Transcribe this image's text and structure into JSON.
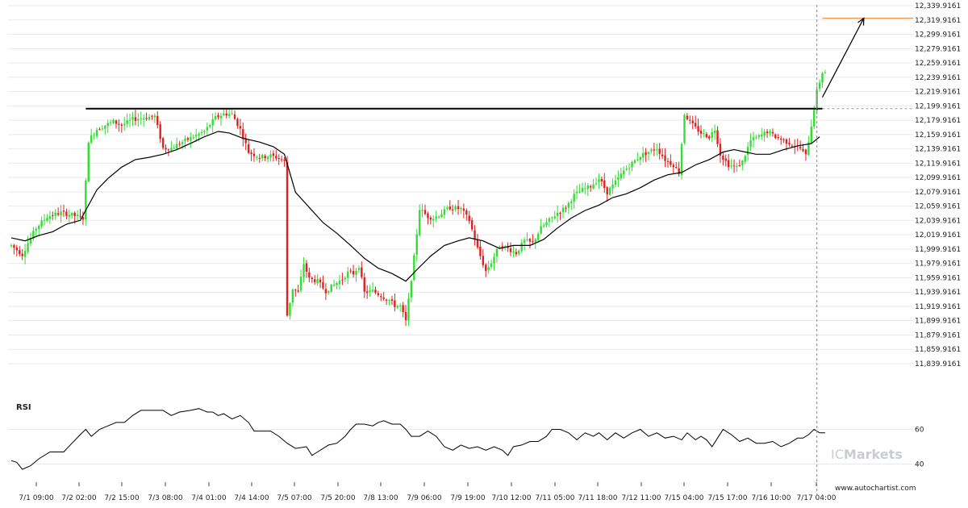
{
  "chart_data": [
    {
      "type": "candlestick",
      "ylim": [
        11825,
        12345
      ],
      "y_ticks": [
        "12,339.9161",
        "12,319.9161",
        "12,299.9161",
        "12,279.9161",
        "12,259.9161",
        "12,239.9161",
        "12,219.9161",
        "12,199.9161",
        "12,179.9161",
        "12,159.9161",
        "12,139.9161",
        "12,119.9161",
        "12,099.9161",
        "12,079.9161",
        "12,059.9161",
        "12,039.9161",
        "12,019.9161",
        "11,999.9161",
        "11,979.9161",
        "11,959.9161",
        "11,939.9161",
        "11,919.9161",
        "11,899.9161",
        "11,879.9161",
        "11,859.9161",
        "11,839.9161"
      ],
      "x_ticks": [
        "7/1 09:00",
        "7/2 02:00",
        "7/2 15:00",
        "7/3 08:00",
        "7/4 01:00",
        "7/4 14:00",
        "7/5 07:00",
        "7/5 20:00",
        "7/8 13:00",
        "7/9 06:00",
        "7/9 19:00",
        "7/10 12:00",
        "7/11 05:00",
        "7/11 18:00",
        "7/12 11:00",
        "7/15 04:00",
        "7/15 17:00",
        "7/16 10:00",
        "7/17 04:00"
      ],
      "close_path": [
        [
          0,
          12022
        ],
        [
          4,
          12010
        ],
        [
          6,
          12025
        ],
        [
          9,
          12045
        ],
        [
          13,
          12060
        ],
        [
          18,
          12065
        ],
        [
          22,
          12062
        ],
        [
          26,
          12058
        ],
        [
          27,
          12105
        ],
        [
          28,
          12160
        ],
        [
          31,
          12175
        ],
        [
          34,
          12180
        ],
        [
          37,
          12185
        ],
        [
          40,
          12180
        ],
        [
          44,
          12188
        ],
        [
          48,
          12190
        ],
        [
          52,
          12192
        ],
        [
          55,
          12150
        ],
        [
          58,
          12150
        ],
        [
          62,
          12158
        ],
        [
          66,
          12165
        ],
        [
          70,
          12172
        ],
        [
          74,
          12190
        ],
        [
          77,
          12195
        ],
        [
          80,
          12195
        ],
        [
          83,
          12175
        ],
        [
          86,
          12145
        ],
        [
          90,
          12138
        ],
        [
          94,
          12140
        ],
        [
          97,
          12137
        ],
        [
          99,
          12132
        ],
        [
          100,
          11930
        ],
        [
          102,
          11965
        ],
        [
          104,
          11960
        ],
        [
          106,
          11998
        ],
        [
          108,
          11978
        ],
        [
          111,
          11975
        ],
        [
          114,
          11962
        ],
        [
          117,
          11970
        ],
        [
          120,
          11978
        ],
        [
          122,
          11986
        ],
        [
          124,
          11985
        ],
        [
          126,
          11995
        ],
        [
          128,
          11960
        ],
        [
          131,
          11962
        ],
        [
          134,
          11956
        ],
        [
          137,
          11950
        ],
        [
          139,
          11943
        ],
        [
          141,
          11942
        ],
        [
          143,
          11922
        ],
        [
          146,
          12006
        ],
        [
          148,
          12070
        ],
        [
          151,
          12060
        ],
        [
          153,
          12058
        ],
        [
          155,
          12062
        ],
        [
          159,
          12072
        ],
        [
          163,
          12070
        ],
        [
          166,
          12055
        ],
        [
          169,
          12018
        ],
        [
          172,
          11988
        ],
        [
          174,
          12000
        ],
        [
          177,
          12022
        ],
        [
          180,
          12018
        ],
        [
          183,
          12012
        ],
        [
          186,
          12028
        ],
        [
          189,
          12025
        ],
        [
          192,
          12045
        ],
        [
          195,
          12055
        ],
        [
          198,
          12065
        ],
        [
          201,
          12072
        ],
        [
          204,
          12088
        ],
        [
          207,
          12095
        ],
        [
          210,
          12100
        ],
        [
          213,
          12110
        ],
        [
          216,
          12092
        ],
        [
          219,
          12105
        ],
        [
          222,
          12120
        ],
        [
          225,
          12130
        ],
        [
          228,
          12140
        ],
        [
          231,
          12145
        ],
        [
          234,
          12150
        ],
        [
          237,
          12135
        ],
        [
          240,
          12128
        ],
        [
          242,
          12118
        ],
        [
          244,
          12195
        ],
        [
          247,
          12180
        ],
        [
          250,
          12170
        ],
        [
          253,
          12165
        ],
        [
          255,
          12175
        ],
        [
          257,
          12142
        ],
        [
          260,
          12128
        ],
        [
          263,
          12125
        ],
        [
          265,
          12132
        ],
        [
          268,
          12160
        ],
        [
          271,
          12165
        ],
        [
          274,
          12172
        ],
        [
          277,
          12165
        ],
        [
          280,
          12160
        ],
        [
          283,
          12155
        ],
        [
          286,
          12150
        ],
        [
          288,
          12140
        ],
        [
          290,
          12180
        ],
        [
          292,
          12225
        ],
        [
          294,
          12250
        ]
      ],
      "ma_path": [
        [
          0,
          12032
        ],
        [
          5,
          12028
        ],
        [
          10,
          12035
        ],
        [
          15,
          12040
        ],
        [
          20,
          12050
        ],
        [
          25,
          12055
        ],
        [
          28,
          12075
        ],
        [
          31,
          12095
        ],
        [
          35,
          12110
        ],
        [
          40,
          12125
        ],
        [
          45,
          12135
        ],
        [
          50,
          12138
        ],
        [
          55,
          12142
        ],
        [
          60,
          12148
        ],
        [
          66,
          12158
        ],
        [
          70,
          12165
        ],
        [
          75,
          12172
        ],
        [
          79,
          12170
        ],
        [
          84,
          12163
        ],
        [
          90,
          12158
        ],
        [
          95,
          12152
        ],
        [
          99,
          12142
        ],
        [
          103,
          12092
        ],
        [
          108,
          12072
        ],
        [
          113,
          12052
        ],
        [
          118,
          12038
        ],
        [
          123,
          12022
        ],
        [
          128,
          12005
        ],
        [
          133,
          11992
        ],
        [
          138,
          11985
        ],
        [
          143,
          11975
        ],
        [
          147,
          11990
        ],
        [
          152,
          12008
        ],
        [
          157,
          12022
        ],
        [
          162,
          12028
        ],
        [
          166,
          12032
        ],
        [
          171,
          12028
        ],
        [
          177,
          12018
        ],
        [
          182,
          12022
        ],
        [
          188,
          12022
        ],
        [
          193,
          12030
        ],
        [
          198,
          12045
        ],
        [
          203,
          12058
        ],
        [
          208,
          12068
        ],
        [
          213,
          12075
        ],
        [
          218,
          12085
        ],
        [
          223,
          12090
        ],
        [
          228,
          12098
        ],
        [
          233,
          12108
        ],
        [
          238,
          12115
        ],
        [
          243,
          12118
        ],
        [
          248,
          12128
        ],
        [
          253,
          12135
        ],
        [
          258,
          12145
        ],
        [
          262,
          12148
        ],
        [
          266,
          12145
        ],
        [
          270,
          12142
        ],
        [
          275,
          12142
        ],
        [
          280,
          12148
        ],
        [
          285,
          12153
        ],
        [
          290,
          12156
        ],
        [
          293,
          12165
        ]
      ],
      "resistance_level": 12202,
      "resistance_start": 27,
      "forecast_level": 12321,
      "forecast_arrow": [
        [
          294,
          12217
        ],
        [
          309,
          12321
        ]
      ]
    },
    {
      "type": "line",
      "title": "RSI",
      "ylim": [
        30,
        80
      ],
      "y_ticks": [
        60,
        40
      ],
      "values_path": [
        [
          0,
          42
        ],
        [
          2,
          41
        ],
        [
          4,
          37
        ],
        [
          7,
          39
        ],
        [
          10,
          43
        ],
        [
          14,
          47
        ],
        [
          19,
          47
        ],
        [
          22,
          52
        ],
        [
          25,
          57
        ],
        [
          27,
          60
        ],
        [
          29,
          56
        ],
        [
          32,
          60
        ],
        [
          35,
          62
        ],
        [
          38,
          64
        ],
        [
          41,
          64
        ],
        [
          44,
          68
        ],
        [
          47,
          71
        ],
        [
          50,
          71
        ],
        [
          55,
          71
        ],
        [
          58,
          68
        ],
        [
          61,
          70
        ],
        [
          65,
          71
        ],
        [
          68,
          72
        ],
        [
          71,
          70
        ],
        [
          73,
          70
        ],
        [
          75,
          68
        ],
        [
          77,
          69
        ],
        [
          80,
          66
        ],
        [
          83,
          68
        ],
        [
          86,
          64
        ],
        [
          88,
          59
        ],
        [
          91,
          59
        ],
        [
          94,
          59
        ],
        [
          97,
          56
        ],
        [
          100,
          52
        ],
        [
          103,
          49
        ],
        [
          107,
          50
        ],
        [
          109,
          45
        ],
        [
          111,
          47
        ],
        [
          115,
          51
        ],
        [
          118,
          52
        ],
        [
          121,
          56
        ],
        [
          123,
          60
        ],
        [
          125,
          63
        ],
        [
          128,
          63
        ],
        [
          131,
          62
        ],
        [
          133,
          64
        ],
        [
          135,
          65
        ],
        [
          138,
          63
        ],
        [
          141,
          63
        ],
        [
          143,
          60
        ],
        [
          145,
          56
        ],
        [
          148,
          56
        ],
        [
          151,
          59
        ],
        [
          154,
          56
        ],
        [
          157,
          50
        ],
        [
          160,
          48
        ],
        [
          163,
          51
        ],
        [
          166,
          49
        ],
        [
          169,
          50
        ],
        [
          172,
          48
        ],
        [
          175,
          50
        ],
        [
          178,
          48
        ],
        [
          180,
          45
        ],
        [
          182,
          50
        ],
        [
          185,
          51
        ],
        [
          188,
          53
        ],
        [
          191,
          53
        ],
        [
          194,
          56
        ],
        [
          196,
          60
        ],
        [
          199,
          60
        ],
        [
          202,
          58
        ],
        [
          205,
          54
        ],
        [
          208,
          58
        ],
        [
          211,
          56
        ],
        [
          213,
          58
        ],
        [
          216,
          54
        ],
        [
          219,
          58
        ],
        [
          222,
          55
        ],
        [
          225,
          58
        ],
        [
          228,
          60
        ],
        [
          231,
          56
        ],
        [
          234,
          58
        ],
        [
          237,
          55
        ],
        [
          240,
          56
        ],
        [
          243,
          54
        ],
        [
          245,
          58
        ],
        [
          248,
          54
        ],
        [
          250,
          56
        ],
        [
          252,
          54
        ],
        [
          254,
          50
        ],
        [
          256,
          55
        ],
        [
          258,
          60
        ],
        [
          261,
          57
        ],
        [
          264,
          53
        ],
        [
          267,
          55
        ],
        [
          270,
          52
        ],
        [
          273,
          52
        ],
        [
          276,
          53
        ],
        [
          279,
          50
        ],
        [
          282,
          52
        ],
        [
          285,
          55
        ],
        [
          287,
          55
        ],
        [
          289,
          57
        ],
        [
          291,
          60
        ],
        [
          293,
          58
        ],
        [
          295,
          58
        ]
      ]
    }
  ],
  "branding": {
    "logo_prefix": "IC",
    "logo_text": "Markets",
    "website": "www.autochartist.com"
  },
  "colors": {
    "up": "#33dd33",
    "down": "#e02020",
    "ma": "#000000",
    "forecast": "#e08030",
    "grid": "#e9e9e9"
  }
}
